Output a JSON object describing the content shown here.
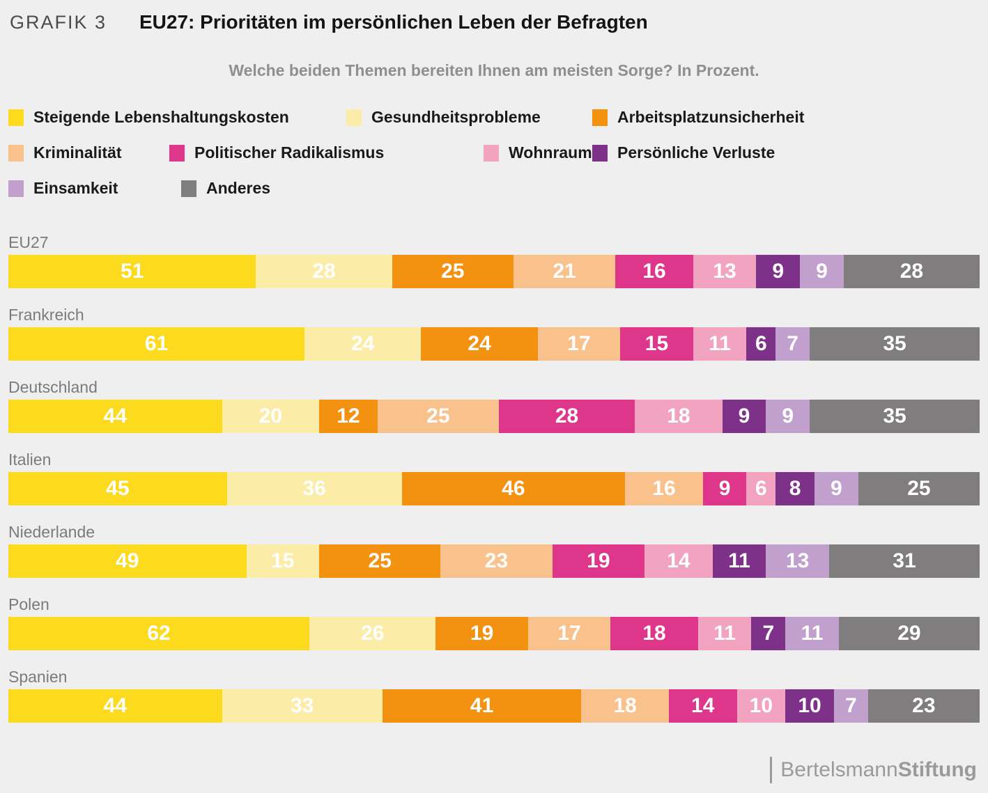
{
  "header": {
    "kicker": "GRAFIK 3",
    "title": "EU27: Prioritäten im persönlichen Leben der Befragten",
    "subtitle": "Welche beiden Themen bereiten Ihnen am meisten Sorge? In Prozent."
  },
  "footer": {
    "brand_regular": "Bertelsmann",
    "brand_bold": "Stiftung"
  },
  "chart_data": {
    "type": "bar",
    "stacked": true,
    "orientation": "horizontal",
    "unit": "percent",
    "title": "EU27: Prioritäten im persönlichen Leben der Befragten",
    "subtitle": "Welche beiden Themen bereiten Ihnen am meisten Sorge? In Prozent.",
    "legend_position": "top",
    "row_total": 200,
    "categories": [
      "EU27",
      "Frankreich",
      "Deutschland",
      "Italien",
      "Niederlande",
      "Polen",
      "Spanien"
    ],
    "series": [
      {
        "name": "Steigende Lebenshaltungskosten",
        "color": "#fcdb1e",
        "values": [
          51,
          61,
          44,
          45,
          49,
          62,
          44
        ]
      },
      {
        "name": "Gesundheitsprobleme",
        "color": "#fbeca8",
        "values": [
          28,
          24,
          20,
          36,
          15,
          26,
          33
        ]
      },
      {
        "name": "Arbeitsplatzunsicherheit",
        "color": "#f29210",
        "values": [
          25,
          24,
          12,
          46,
          25,
          19,
          41
        ]
      },
      {
        "name": "Kriminalität",
        "color": "#f9c28c",
        "values": [
          21,
          17,
          25,
          16,
          23,
          17,
          18
        ]
      },
      {
        "name": "Politischer Radikalismus",
        "color": "#de368a",
        "values": [
          16,
          15,
          28,
          9,
          19,
          18,
          14
        ]
      },
      {
        "name": "Wohnraum",
        "color": "#f2a3bf",
        "values": [
          13,
          11,
          18,
          6,
          14,
          11,
          10
        ]
      },
      {
        "name": "Persönliche Verluste",
        "color": "#7e3189",
        "values": [
          9,
          6,
          9,
          8,
          11,
          7,
          10
        ]
      },
      {
        "name": "Einsamkeit",
        "color": "#c2a0cd",
        "values": [
          9,
          7,
          9,
          9,
          13,
          11,
          7
        ]
      },
      {
        "name": "Anderes",
        "color": "#807d7e",
        "values": [
          28,
          35,
          35,
          25,
          31,
          29,
          23
        ]
      }
    ]
  }
}
